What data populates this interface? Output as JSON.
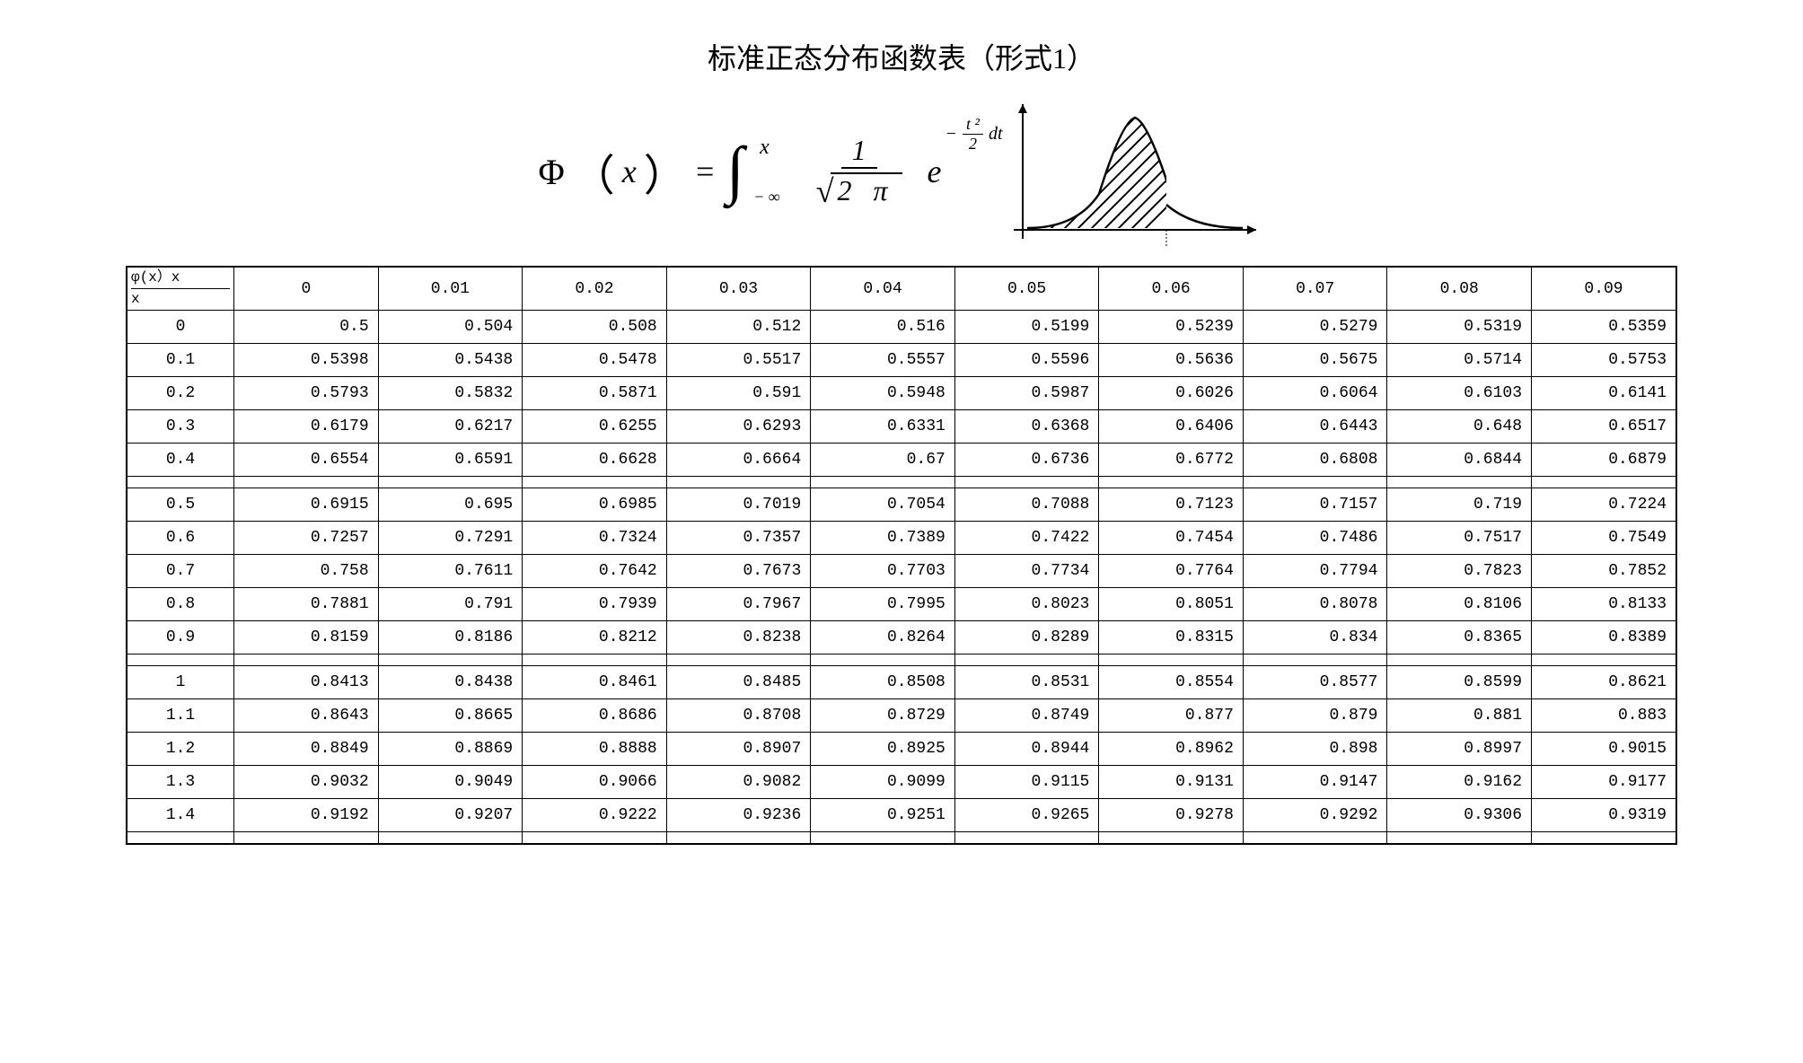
{
  "title": "标准正态分布函数表（形式1）",
  "formula": {
    "phi": "Φ",
    "var": "x",
    "eq": "=",
    "int_upper": "x",
    "int_lower": "− ∞",
    "frac_num": "1",
    "frac_den_inner": "2 π",
    "e": "e",
    "exp_minus": "−",
    "exp_frac_num": "t ²",
    "exp_frac_den": "2",
    "exp_dt": "dt"
  },
  "graph": {
    "stroke": "#000000",
    "fill_lines": "#000000"
  },
  "table": {
    "corner_top": "φ(x）x",
    "corner_bottom": "x",
    "columns": [
      "0",
      "0.01",
      "0.02",
      "0.03",
      "0.04",
      "0.05",
      "0.06",
      "0.07",
      "0.08",
      "0.09"
    ],
    "groups": [
      {
        "rows": [
          {
            "head": "0",
            "cells": [
              "0.5",
              "0.504",
              "0.508",
              "0.512",
              "0.516",
              "0.5199",
              "0.5239",
              "0.5279",
              "0.5319",
              "0.5359"
            ]
          },
          {
            "head": "0.1",
            "cells": [
              "0.5398",
              "0.5438",
              "0.5478",
              "0.5517",
              "0.5557",
              "0.5596",
              "0.5636",
              "0.5675",
              "0.5714",
              "0.5753"
            ]
          },
          {
            "head": "0.2",
            "cells": [
              "0.5793",
              "0.5832",
              "0.5871",
              "0.591",
              "0.5948",
              "0.5987",
              "0.6026",
              "0.6064",
              "0.6103",
              "0.6141"
            ]
          },
          {
            "head": "0.3",
            "cells": [
              "0.6179",
              "0.6217",
              "0.6255",
              "0.6293",
              "0.6331",
              "0.6368",
              "0.6406",
              "0.6443",
              "0.648",
              "0.6517"
            ]
          },
          {
            "head": "0.4",
            "cells": [
              "0.6554",
              "0.6591",
              "0.6628",
              "0.6664",
              "0.67",
              "0.6736",
              "0.6772",
              "0.6808",
              "0.6844",
              "0.6879"
            ]
          }
        ]
      },
      {
        "rows": [
          {
            "head": "0.5",
            "cells": [
              "0.6915",
              "0.695",
              "0.6985",
              "0.7019",
              "0.7054",
              "0.7088",
              "0.7123",
              "0.7157",
              "0.719",
              "0.7224"
            ]
          },
          {
            "head": "0.6",
            "cells": [
              "0.7257",
              "0.7291",
              "0.7324",
              "0.7357",
              "0.7389",
              "0.7422",
              "0.7454",
              "0.7486",
              "0.7517",
              "0.7549"
            ]
          },
          {
            "head": "0.7",
            "cells": [
              "0.758",
              "0.7611",
              "0.7642",
              "0.7673",
              "0.7703",
              "0.7734",
              "0.7764",
              "0.7794",
              "0.7823",
              "0.7852"
            ]
          },
          {
            "head": "0.8",
            "cells": [
              "0.7881",
              "0.791",
              "0.7939",
              "0.7967",
              "0.7995",
              "0.8023",
              "0.8051",
              "0.8078",
              "0.8106",
              "0.8133"
            ]
          },
          {
            "head": "0.9",
            "cells": [
              "0.8159",
              "0.8186",
              "0.8212",
              "0.8238",
              "0.8264",
              "0.8289",
              "0.8315",
              "0.834",
              "0.8365",
              "0.8389"
            ]
          }
        ]
      },
      {
        "rows": [
          {
            "head": "1",
            "cells": [
              "0.8413",
              "0.8438",
              "0.8461",
              "0.8485",
              "0.8508",
              "0.8531",
              "0.8554",
              "0.8577",
              "0.8599",
              "0.8621"
            ]
          },
          {
            "head": "1.1",
            "cells": [
              "0.8643",
              "0.8665",
              "0.8686",
              "0.8708",
              "0.8729",
              "0.8749",
              "0.877",
              "0.879",
              "0.881",
              "0.883"
            ]
          },
          {
            "head": "1.2",
            "cells": [
              "0.8849",
              "0.8869",
              "0.8888",
              "0.8907",
              "0.8925",
              "0.8944",
              "0.8962",
              "0.898",
              "0.8997",
              "0.9015"
            ]
          },
          {
            "head": "1.3",
            "cells": [
              "0.9032",
              "0.9049",
              "0.9066",
              "0.9082",
              "0.9099",
              "0.9115",
              "0.9131",
              "0.9147",
              "0.9162",
              "0.9177"
            ]
          },
          {
            "head": "1.4",
            "cells": [
              "0.9192",
              "0.9207",
              "0.9222",
              "0.9236",
              "0.9251",
              "0.9265",
              "0.9278",
              "0.9292",
              "0.9306",
              "0.9319"
            ]
          }
        ]
      }
    ]
  }
}
